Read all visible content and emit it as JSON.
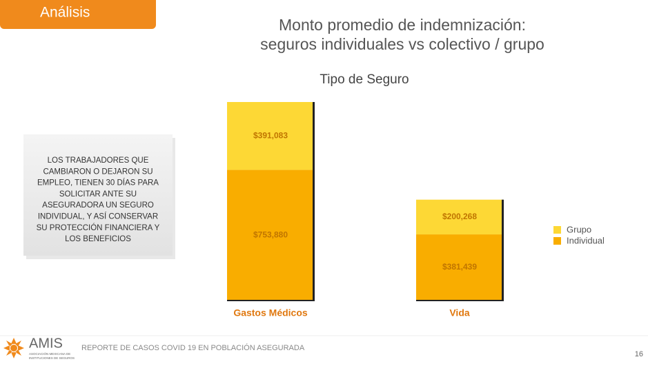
{
  "header": {
    "tab": "Análisis"
  },
  "note": [
    "LOS TRABAJADORES QUE",
    "CAMBIARON O DEJARON SU",
    "EMPLEO, TIENEN 30 DÍAS PARA",
    "SOLICITAR ANTE SU",
    "ASEGURADORA UN SEGURO",
    "INDIVIDUAL, Y ASÍ CONSERVAR",
    "SU PROTECCIÓN FINANCIERA Y",
    "LOS BENEFICIOS"
  ],
  "chart_data": {
    "type": "bar",
    "stacked": true,
    "title": [
      "Monto promedio de indemnización:",
      "seguros individuales vs colectivo / grupo"
    ],
    "subtitle": "Tipo de Seguro",
    "categories": [
      "Gastos Médicos",
      "Vida"
    ],
    "series": [
      {
        "name": "Individual",
        "color": "#f9ad00",
        "values": [
          753880,
          381439
        ],
        "value_labels": [
          "$753,880",
          "$381,439"
        ]
      },
      {
        "name": "Grupo",
        "color": "#fdd835",
        "values": [
          391083,
          200268
        ],
        "value_labels": [
          "$391,083",
          "$200,268"
        ]
      }
    ]
  },
  "footer": {
    "logo": "AMIS",
    "logo_sub": [
      "ASOCIACIÓN MEXICANA DE",
      "INSTITUCIONES DE SEGUROS"
    ],
    "text": "REPORTE DE CASOS COVID 19 EN POBLACIÓN ASEGURADA",
    "page": "16"
  }
}
